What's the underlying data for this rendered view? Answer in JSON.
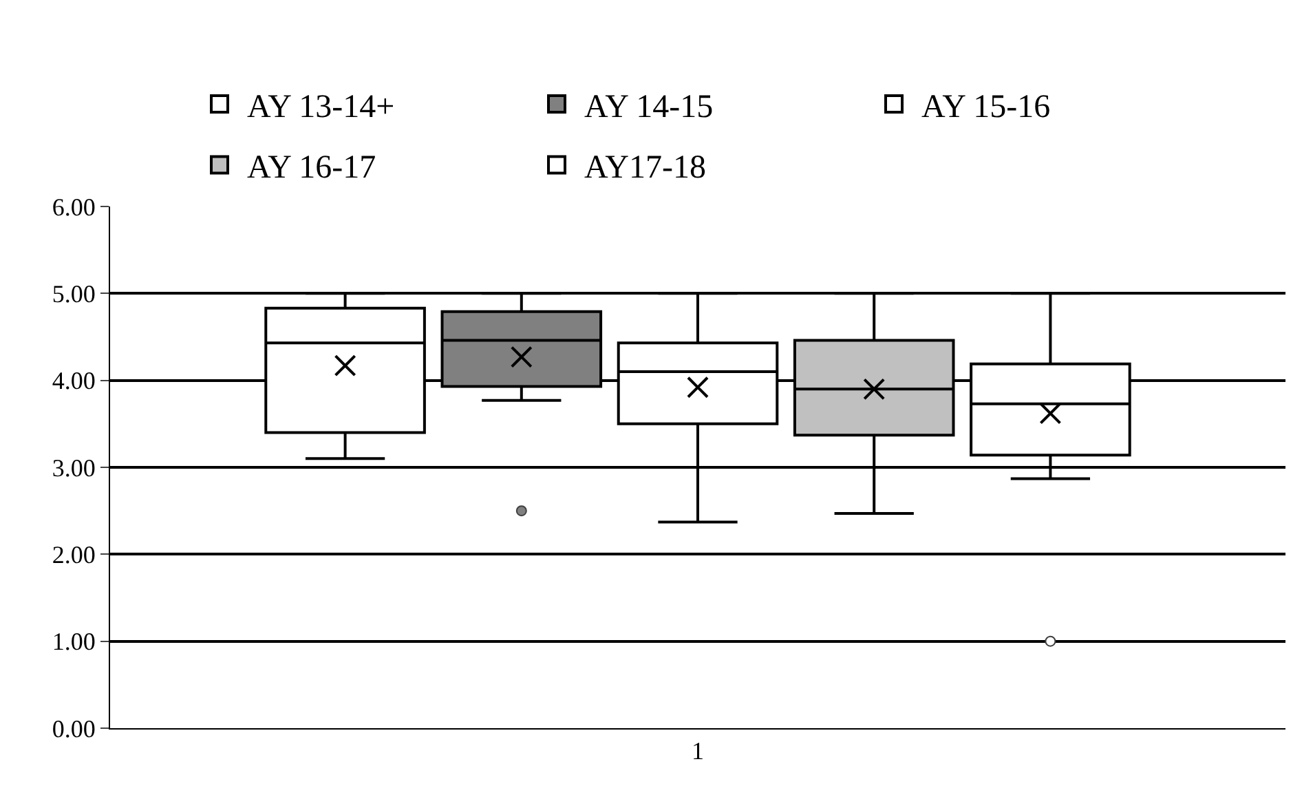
{
  "chart_data": {
    "type": "box",
    "categories": [
      "1"
    ],
    "series": [
      {
        "name": "AY 13-14+",
        "color": "#ffffff",
        "boxes": [
          {
            "low": 3.1,
            "q1": 3.4,
            "median": 4.43,
            "q3": 4.83,
            "high": 5.0,
            "mean": 4.17
          }
        ]
      },
      {
        "name": "AY 14-15",
        "color": "#808080",
        "boxes": [
          {
            "low": 3.77,
            "q1": 3.93,
            "median": 4.46,
            "q3": 4.79,
            "high": 5.0,
            "mean": 4.27,
            "outliers": [
              2.5
            ]
          }
        ]
      },
      {
        "name": "AY 15-16",
        "color": "#ffffff",
        "boxes": [
          {
            "low": 2.37,
            "q1": 3.5,
            "median": 4.1,
            "q3": 4.43,
            "high": 5.0,
            "mean": 3.92
          }
        ]
      },
      {
        "name": "AY 16-17",
        "color": "#c0c0c0",
        "boxes": [
          {
            "low": 2.47,
            "q1": 3.37,
            "median": 3.9,
            "q3": 4.46,
            "high": 5.0,
            "mean": 3.9
          }
        ]
      },
      {
        "name": "AY17-18",
        "color": "#ffffff",
        "boxes": [
          {
            "low": 2.87,
            "q1": 3.14,
            "median": 3.73,
            "q3": 4.19,
            "high": 5.0,
            "mean": 3.62,
            "outliers": [
              1.0
            ]
          }
        ]
      }
    ],
    "ylim": [
      0,
      6
    ],
    "yticks": [
      {
        "value": 0,
        "label": "0.00"
      },
      {
        "value": 1,
        "label": "1.00"
      },
      {
        "value": 2,
        "label": "2.00"
      },
      {
        "value": 3,
        "label": "3.00"
      },
      {
        "value": 4,
        "label": "4.00"
      },
      {
        "value": 5,
        "label": "5.00"
      },
      {
        "value": 6,
        "label": "6.00"
      }
    ],
    "grid": "y",
    "legend": "top",
    "marker": "cross"
  }
}
